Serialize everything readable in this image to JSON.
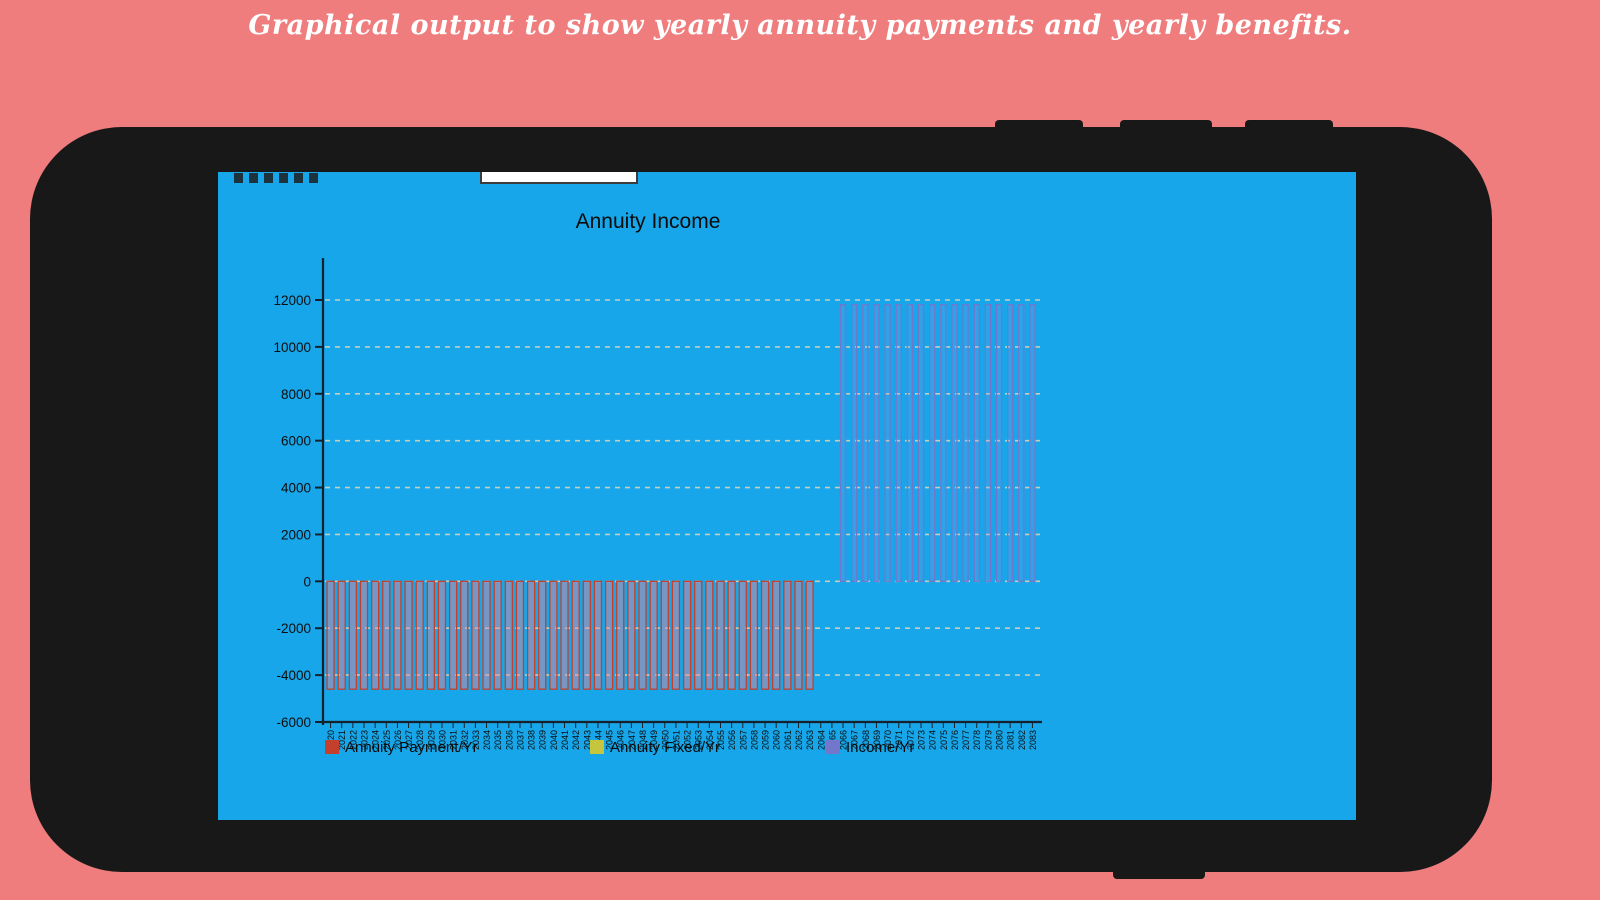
{
  "caption": "Graphical output to show yearly annuity payments and yearly benefits.",
  "colors": {
    "page_background": "#ef7d7d",
    "device_frame": "#181818",
    "screen_background": "#16a6e9",
    "axis": "#17212b",
    "gridline": "#c9cdb9",
    "payment_stroke": "#c4402c",
    "payment_fill": "rgba(240,130,150,0.45)",
    "fixed_swatch": "#c6c63e",
    "income_stroke": "#7377cb",
    "income_fill": "rgba(140,150,230,0.22)"
  },
  "chart_data": {
    "type": "bar",
    "title": "Annuity Income",
    "xlabel": "",
    "ylabel": "",
    "ylim": [
      -6000,
      13000
    ],
    "yticks": [
      12000,
      10000,
      8000,
      6000,
      4000,
      2000,
      0,
      -2000,
      -4000,
      -6000
    ],
    "grid": "dashed horizontal",
    "legend_position": "bottom",
    "categories": [
      "2020",
      "2021",
      "2022",
      "2023",
      "2024",
      "2025",
      "2026",
      "2027",
      "2028",
      "2029",
      "2030",
      "2031",
      "2032",
      "2033",
      "2034",
      "2035",
      "2036",
      "2037",
      "2038",
      "2039",
      "2040",
      "2041",
      "2042",
      "2043",
      "2044",
      "2045",
      "2046",
      "2047",
      "2048",
      "2049",
      "2050",
      "2051",
      "2052",
      "2053",
      "2054",
      "2055",
      "2056",
      "2057",
      "2058",
      "2059",
      "2060",
      "2061",
      "2062",
      "2063",
      "2064",
      "2065",
      "2066",
      "2067",
      "2068",
      "2069",
      "2070",
      "2071",
      "2072",
      "2073",
      "2074",
      "2075",
      "2076",
      "2077",
      "2078",
      "2079",
      "2080",
      "2081",
      "2082",
      "2083"
    ],
    "series": [
      {
        "name": "Annuity Payment/Yr",
        "color": "#c4402c",
        "fill": "rgba(240,130,150,0.45)",
        "values": [
          -4600,
          -4600,
          -4600,
          -4600,
          -4600,
          -4600,
          -4600,
          -4600,
          -4600,
          -4600,
          -4600,
          -4600,
          -4600,
          -4600,
          -4600,
          -4600,
          -4600,
          -4600,
          -4600,
          -4600,
          -4600,
          -4600,
          -4600,
          -4600,
          -4600,
          -4600,
          -4600,
          -4600,
          -4600,
          -4600,
          -4600,
          -4600,
          -4600,
          -4600,
          -4600,
          -4600,
          -4600,
          -4600,
          -4600,
          -4600,
          -4600,
          -4600,
          -4600,
          -4600,
          0,
          0,
          0,
          0,
          0,
          0,
          0,
          0,
          0,
          0,
          0,
          0,
          0,
          0,
          0,
          0,
          0,
          0,
          0,
          0
        ]
      },
      {
        "name": "Annuity Fixed/Yr",
        "color": "#c6c63e",
        "fill": "rgba(200,200,80,0.3)",
        "values": [
          0,
          0,
          0,
          0,
          0,
          0,
          0,
          0,
          0,
          0,
          0,
          0,
          0,
          0,
          0,
          0,
          0,
          0,
          0,
          0,
          0,
          0,
          0,
          0,
          0,
          0,
          0,
          0,
          0,
          0,
          0,
          0,
          0,
          0,
          0,
          0,
          0,
          0,
          0,
          0,
          0,
          0,
          0,
          0,
          0,
          0,
          0,
          0,
          0,
          0,
          0,
          0,
          0,
          0,
          0,
          0,
          0,
          0,
          0,
          0,
          0,
          0,
          0,
          0
        ]
      },
      {
        "name": "Income/Yr",
        "color": "#7377cb",
        "fill": "rgba(140,150,230,0.22)",
        "values": [
          0,
          0,
          0,
          0,
          0,
          0,
          0,
          0,
          0,
          0,
          0,
          0,
          0,
          0,
          0,
          0,
          0,
          0,
          0,
          0,
          0,
          0,
          0,
          0,
          0,
          0,
          0,
          0,
          0,
          0,
          0,
          0,
          0,
          0,
          0,
          0,
          0,
          0,
          0,
          0,
          0,
          0,
          0,
          0,
          0,
          0,
          11800,
          11800,
          11800,
          11800,
          11800,
          11800,
          11800,
          11800,
          11800,
          11800,
          11800,
          11800,
          11800,
          11800,
          11800,
          11800,
          11800,
          11800
        ]
      }
    ]
  }
}
